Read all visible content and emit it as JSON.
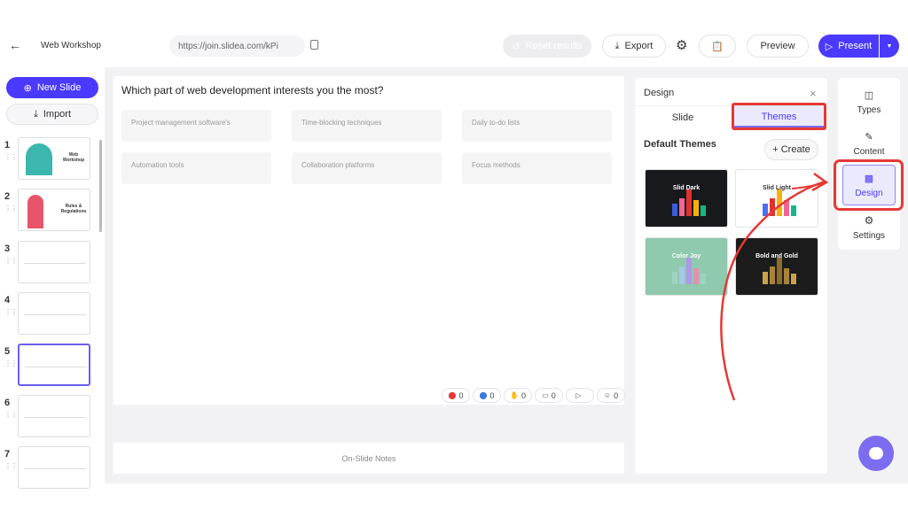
{
  "header": {
    "title": "Web Workshop",
    "link": "https://join.slidea.com/kPi",
    "reset_label": "Reset results",
    "export_label": "Export",
    "preview_label": "Preview",
    "present_label": "Present"
  },
  "sidebar": {
    "new_slide_label": "New Slide",
    "import_label": "Import",
    "slides": [
      {
        "num": "1",
        "title": "Web Workshop"
      },
      {
        "num": "2",
        "title": "Rules & Regulations"
      },
      {
        "num": "3"
      },
      {
        "num": "4"
      },
      {
        "num": "5",
        "active": true
      },
      {
        "num": "6"
      },
      {
        "num": "7"
      }
    ]
  },
  "slide": {
    "question": "Which part of web development interests you the most?",
    "options": [
      "Project management software's",
      "Time-blocking techniques",
      "Daily to-do lists",
      "Automation tools",
      "Collaboration platforms",
      "Focus methods"
    ],
    "reactions": [
      {
        "icon": "heart-icon",
        "count": "0"
      },
      {
        "icon": "like-icon",
        "count": "0"
      },
      {
        "icon": "clap-icon",
        "count": "0"
      },
      {
        "icon": "comments-icon",
        "count": "0"
      },
      {
        "icon": "video-icon",
        "count": ""
      },
      {
        "icon": "users-icon",
        "count": "0"
      }
    ]
  },
  "notes": {
    "label": "On-Slide Notes"
  },
  "design_panel": {
    "title": "Design",
    "tabs": [
      "Slide",
      "Themes"
    ],
    "active_tab": "Themes",
    "section_title": "Default Themes",
    "create_label": "+ Create",
    "themes": [
      {
        "name": "Slid Dark",
        "bg": "#17191c",
        "text": "#ffffff",
        "bars": [
          "#3b5bdb",
          "#f06595",
          "#e03131",
          "#fab005",
          "#12b886"
        ]
      },
      {
        "name": "Slid Light",
        "bg": "#ffffff",
        "text": "#333333",
        "bars": [
          "#4c6ef5",
          "#e03131",
          "#fab005",
          "#f06595",
          "#12b886"
        ]
      },
      {
        "name": "Color Joy",
        "bg": "#8fc9ae",
        "text": "#ffffff",
        "bars": [
          "#9ed4bf",
          "#a5c8e8",
          "#b197e8",
          "#e58fb0",
          "#9ed4bf"
        ]
      },
      {
        "name": "Bold and Gold",
        "bg": "#1c1c1c",
        "text": "#ffffff",
        "bars": [
          "#c9a24a",
          "#a98434",
          "#8c6d2a",
          "#a98434",
          "#c9a24a"
        ]
      }
    ]
  },
  "rail": {
    "items": [
      "Types",
      "Content",
      "Design",
      "Settings"
    ],
    "active": "Design"
  },
  "colors": {
    "accent": "#4a3aff",
    "annotation": "#e53935"
  }
}
